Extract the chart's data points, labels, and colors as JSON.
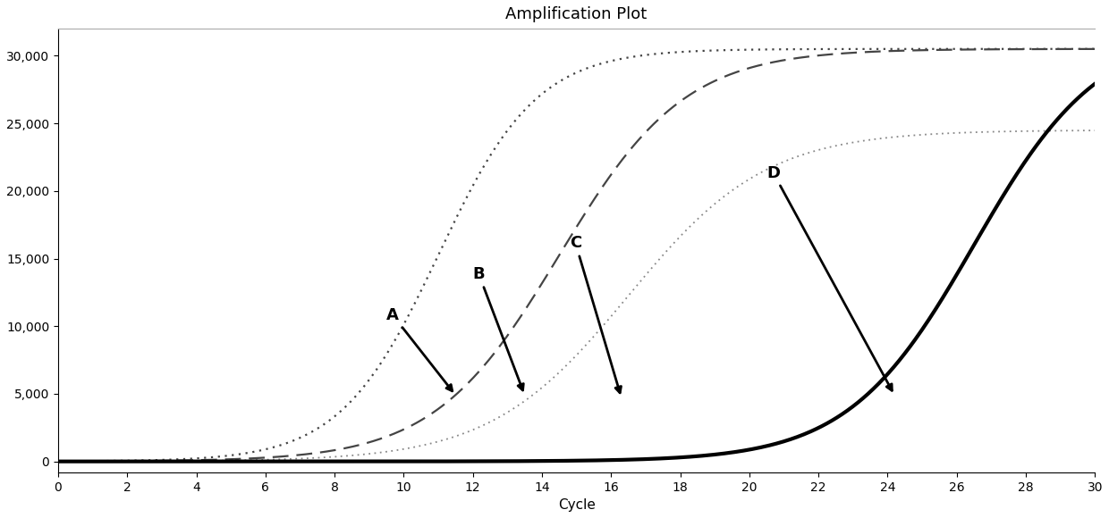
{
  "title": "Amplification Plot",
  "xlabel": "Cycle",
  "ylabel": "",
  "xlim": [
    0,
    30
  ],
  "ylim": [
    -800,
    32000
  ],
  "yticks": [
    0,
    5000,
    10000,
    15000,
    20000,
    25000,
    30000
  ],
  "ytick_labels": [
    "0",
    "5,000",
    "10,000",
    "15,000",
    "20,000",
    "25,000",
    "30,000"
  ],
  "xticks": [
    0,
    2,
    4,
    6,
    8,
    10,
    12,
    14,
    16,
    18,
    20,
    22,
    24,
    26,
    28,
    30
  ],
  "background_color": "#ffffff",
  "title_fontsize": 13,
  "label_fontsize": 11,
  "tick_fontsize": 10,
  "curves": [
    {
      "id": "A_dotted",
      "x0": 11.0,
      "L": 30500,
      "k": 0.7,
      "color": "#444444",
      "ls": "dotted",
      "lw": 1.6
    },
    {
      "id": "B_dashed",
      "x0": 14.5,
      "L": 30500,
      "k": 0.55,
      "color": "#444444",
      "ls": "dashed",
      "lw": 1.6
    },
    {
      "id": "C_dotted2",
      "x0": 16.5,
      "L": 24500,
      "k": 0.5,
      "color": "#888888",
      "ls": "dotted",
      "lw": 1.3
    },
    {
      "id": "D_solid",
      "x0": 26.5,
      "L": 32000,
      "k": 0.55,
      "color": "#000000",
      "ls": "solid",
      "lw": 3.0
    }
  ],
  "annotations": [
    {
      "label": "A",
      "xt": 9.5,
      "yt": 10500,
      "xa": 11.5,
      "ya": 4900
    },
    {
      "label": "B",
      "xt": 12.0,
      "yt": 13500,
      "xa": 13.5,
      "ya": 4900
    },
    {
      "label": "C",
      "xt": 14.8,
      "yt": 15800,
      "xa": 16.3,
      "ya": 4700
    },
    {
      "label": "D",
      "xt": 20.5,
      "yt": 21000,
      "xa": 24.2,
      "ya": 4900
    }
  ]
}
